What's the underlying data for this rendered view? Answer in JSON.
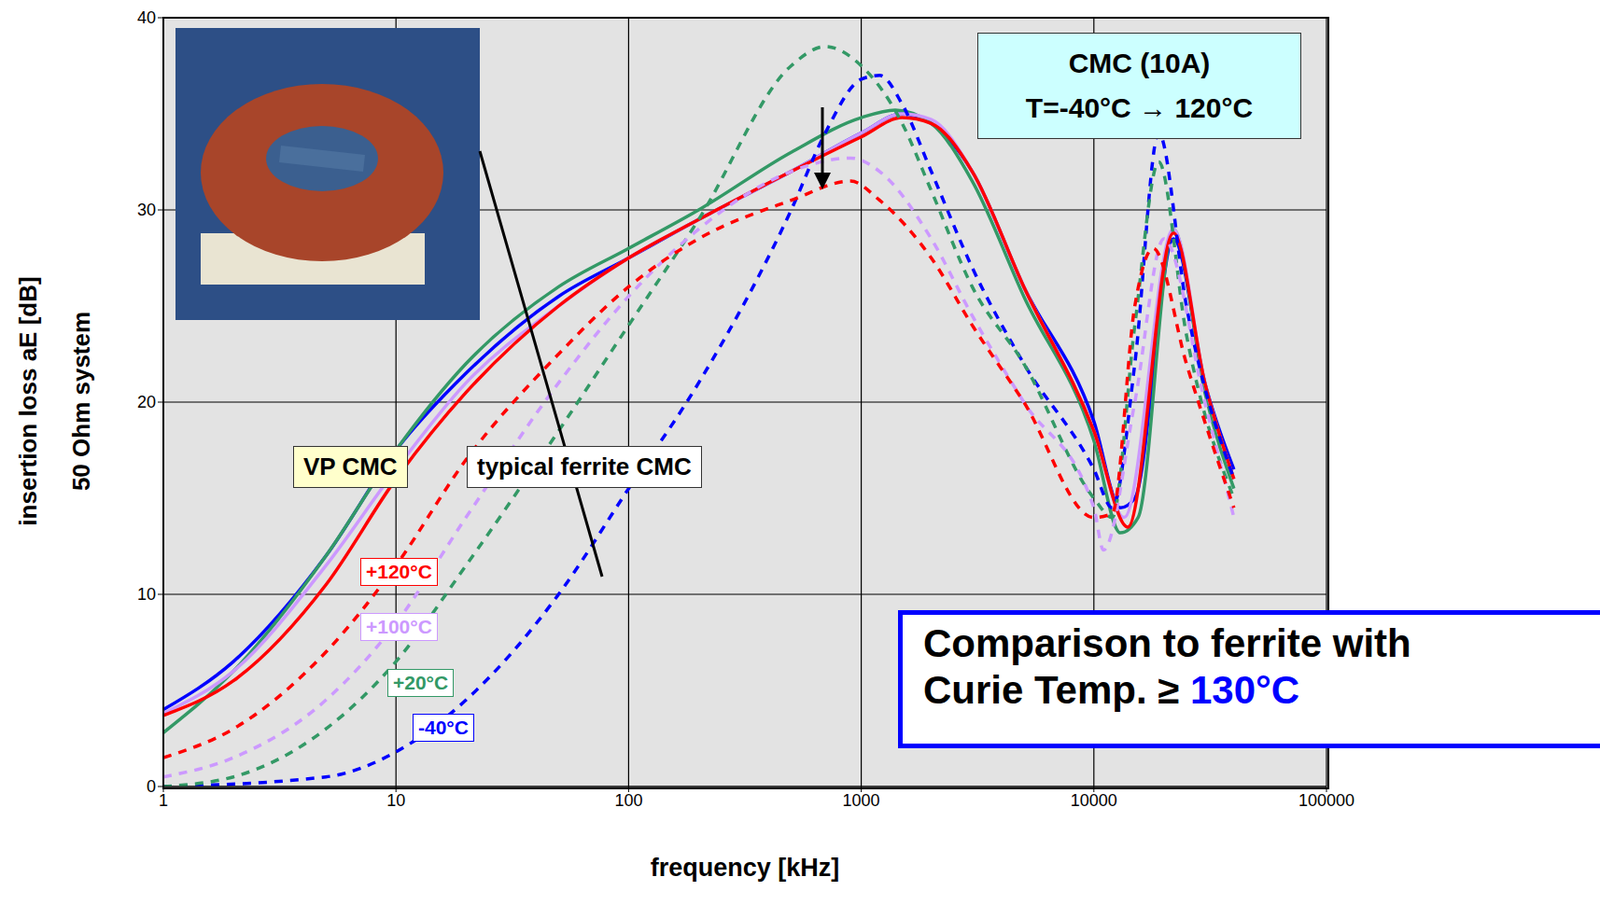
{
  "chart_data": {
    "type": "line",
    "x_label": "frequency [kHz]",
    "y_label": "insertion loss  aE [dB]",
    "y_sublabel": "50 Ohm system",
    "log": "x",
    "grid": true,
    "xlim": [
      1,
      100000
    ],
    "xticks": [
      1,
      10,
      100,
      1000,
      10000,
      100000
    ],
    "ylim": [
      0,
      40
    ],
    "yticks": [
      0,
      10,
      20,
      30,
      40
    ],
    "annotations": {
      "title_box": [
        "CMC (10A)",
        "T=-40°C → 120°C"
      ],
      "group_labels": [
        "VP CMC",
        "typical ferrite CMC"
      ],
      "note": [
        "Comparison to ferrite with",
        "Curie Temp. ≥",
        "130°C"
      ]
    },
    "series": [
      {
        "name": "-40°C",
        "color": "#0000ff",
        "line_style": "solid",
        "x": [
          1,
          2,
          5,
          10,
          20,
          50,
          100,
          200,
          500,
          1000,
          1500,
          2000,
          3000,
          5000,
          10000,
          13000,
          15000,
          22000,
          30000,
          40000
        ],
        "values": [
          4,
          6.5,
          12,
          17.5,
          21.5,
          25.5,
          27.5,
          29.5,
          32,
          34,
          35,
          34.5,
          32,
          26,
          19,
          14.5,
          15,
          28.5,
          21,
          16.5
        ]
      },
      {
        "name": "+20°C",
        "color": "#339966",
        "line_style": "solid",
        "x": [
          1,
          2,
          5,
          10,
          20,
          50,
          100,
          200,
          500,
          1000,
          1400,
          2000,
          3000,
          5000,
          10000,
          13000,
          15500,
          22000,
          30000,
          40000
        ],
        "values": [
          2.8,
          6,
          12,
          17.5,
          22,
          26,
          28,
          30,
          33,
          34.8,
          35.2,
          34.5,
          31.5,
          25.5,
          18,
          13.2,
          14,
          29,
          20.5,
          15.5
        ]
      },
      {
        "name": "+100°C",
        "color": "#cc99ff",
        "line_style": "solid",
        "x": [
          1,
          2,
          5,
          10,
          20,
          50,
          100,
          200,
          500,
          1000,
          1500,
          2000,
          3000,
          5000,
          10000,
          13500,
          22000,
          30000,
          40000
        ],
        "values": [
          3.8,
          6,
          11.5,
          16.5,
          21,
          25,
          27.5,
          29.5,
          32,
          34,
          35,
          34.7,
          32,
          26,
          18.5,
          14,
          29,
          21,
          16
        ]
      },
      {
        "name": "+120°C",
        "color": "#ff0000",
        "line_style": "solid",
        "x": [
          1,
          2,
          5,
          10,
          20,
          50,
          100,
          200,
          500,
          1000,
          1500,
          2000,
          3000,
          5000,
          10000,
          14000,
          22000,
          30000,
          40000
        ],
        "values": [
          3.7,
          5.5,
          10.5,
          16,
          20.5,
          25,
          27.5,
          29.5,
          32,
          33.8,
          34.8,
          34.5,
          32,
          26,
          18.5,
          13.5,
          28.8,
          21,
          16
        ]
      },
      {
        "name": "-40°C",
        "color": "#0000ff",
        "line_style": "dashed",
        "x": [
          1,
          5,
          10,
          20,
          50,
          100,
          200,
          500,
          700,
          1000,
          1200,
          1500,
          2000,
          3000,
          5000,
          10000,
          12000,
          15000,
          19000,
          25000,
          40000
        ],
        "values": [
          0,
          0.5,
          1.8,
          4.5,
          10,
          15.5,
          21,
          30,
          34,
          36.8,
          37,
          35.5,
          32,
          27,
          22,
          16.5,
          14.5,
          22,
          34,
          25,
          16
        ]
      },
      {
        "name": "+20°C",
        "color": "#339966",
        "line_style": "dashed",
        "x": [
          1,
          2,
          5,
          10,
          20,
          50,
          100,
          200,
          500,
          700,
          1000,
          1500,
          2000,
          3000,
          5000,
          10000,
          12000,
          15000,
          19000,
          25000,
          40000
        ],
        "values": [
          0,
          0.5,
          3,
          6.5,
          11.5,
          18.5,
          24,
          29.5,
          37.5,
          38.5,
          37.5,
          34.5,
          31,
          26,
          22,
          15,
          14,
          24,
          32.5,
          23.5,
          15
        ]
      },
      {
        "name": "+100°C",
        "color": "#cc99ff",
        "line_style": "dashed",
        "x": [
          1,
          2,
          5,
          10,
          20,
          50,
          100,
          200,
          500,
          900,
          1200,
          2000,
          3000,
          5000,
          10000,
          11000,
          15000,
          20000,
          30000,
          40000
        ],
        "values": [
          0.5,
          1.5,
          4.5,
          8.5,
          14,
          21,
          25.5,
          29,
          32,
          32.7,
          32,
          28.5,
          24.5,
          20,
          14.5,
          12.3,
          20,
          28.5,
          20,
          14
        ]
      },
      {
        "name": "+120°C",
        "color": "#ff0000",
        "line_style": "dashed",
        "x": [
          1,
          2,
          5,
          10,
          20,
          50,
          100,
          200,
          500,
          900,
          1200,
          2000,
          3000,
          5000,
          10000,
          12000,
          15000,
          18000,
          25000,
          40000
        ],
        "values": [
          1.5,
          3,
          7,
          11.5,
          17,
          22.5,
          26,
          28.5,
          30.5,
          31.5,
          30.5,
          27.5,
          24,
          20,
          14,
          14.2,
          25,
          28,
          22,
          14.5
        ]
      }
    ]
  }
}
